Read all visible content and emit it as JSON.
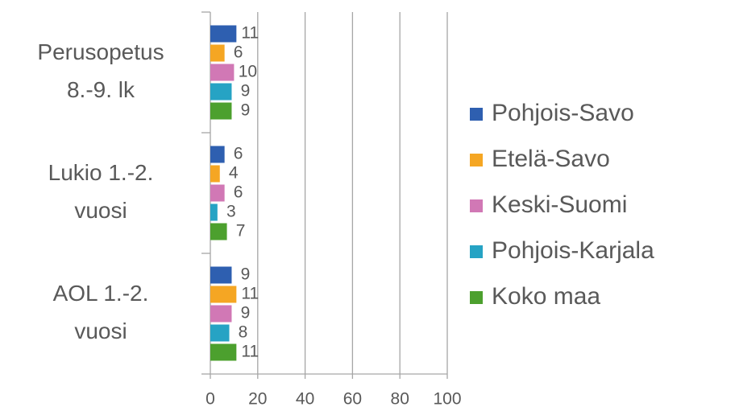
{
  "chart_data": {
    "type": "bar",
    "orientation": "horizontal",
    "categories": [
      [
        "Perusopetus",
        "8.-9. lk"
      ],
      [
        "Lukio 1.-2.",
        "vuosi"
      ],
      [
        "AOL 1.-2.",
        "vuosi"
      ]
    ],
    "series": [
      {
        "name": "Pohjois-Savo",
        "color": "#2e5fb0",
        "values": [
          11,
          6,
          9
        ]
      },
      {
        "name": "Etelä-Savo",
        "color": "#f5a623",
        "values": [
          6,
          4,
          11
        ]
      },
      {
        "name": "Keski-Suomi",
        "color": "#d178b5",
        "values": [
          10,
          6,
          9
        ]
      },
      {
        "name": "Pohjois-Karjala",
        "color": "#26a3c4",
        "values": [
          9,
          3,
          8
        ]
      },
      {
        "name": "Koko maa",
        "color": "#4ca02e",
        "values": [
          9,
          7,
          11
        ]
      }
    ],
    "xlim": [
      0,
      100
    ],
    "xticks": [
      0,
      20,
      40,
      60,
      80,
      100
    ],
    "grid": true,
    "legend": "right"
  }
}
